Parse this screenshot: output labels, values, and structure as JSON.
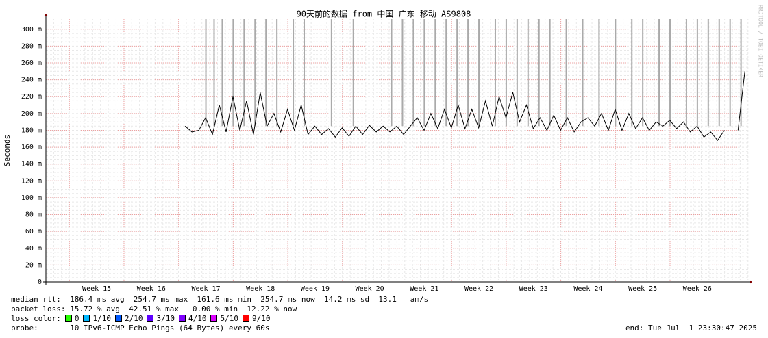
{
  "chart_data": {
    "type": "line",
    "title": "90天前的数据 from 中国 广东 移动 AS9808",
    "y_label": "Seconds",
    "side_text": "RRDTOOL / TOBI OETIKER",
    "xlim": [
      14.07,
      26.93
    ],
    "xticks": [
      {
        "value": 15,
        "label": "Week 15"
      },
      {
        "value": 16,
        "label": "Week 16"
      },
      {
        "value": 17,
        "label": "Week 17"
      },
      {
        "value": 18,
        "label": "Week 18"
      },
      {
        "value": 19,
        "label": "Week 19"
      },
      {
        "value": 20,
        "label": "Week 20"
      },
      {
        "value": 21,
        "label": "Week 21"
      },
      {
        "value": 22,
        "label": "Week 22"
      },
      {
        "value": 23,
        "label": "Week 23"
      },
      {
        "value": 24,
        "label": "Week 24"
      },
      {
        "value": 25,
        "label": "Week 25"
      },
      {
        "value": 26,
        "label": "Week 26"
      }
    ],
    "ylim": [
      0,
      312
    ],
    "yticks": [
      0,
      {
        "value": 20,
        "label": "20 m"
      },
      {
        "value": 40,
        "label": "40 m"
      },
      {
        "value": 60,
        "label": "60 m"
      },
      {
        "value": 80,
        "label": "80 m"
      },
      {
        "value": 100,
        "label": "100 m"
      },
      {
        "value": 120,
        "label": "120 m"
      },
      {
        "value": 140,
        "label": "140 m"
      },
      {
        "value": 160,
        "label": "160 m"
      },
      {
        "value": 180,
        "label": "180 m"
      },
      {
        "value": 200,
        "label": "200 m"
      },
      {
        "value": 220,
        "label": "220 m"
      },
      {
        "value": 240,
        "label": "240 m"
      },
      {
        "value": 260,
        "label": "260 m"
      },
      {
        "value": 280,
        "label": "280 m"
      },
      {
        "value": 300,
        "label": "300 m"
      }
    ],
    "grid": true,
    "x": [
      16.62,
      16.745,
      16.87,
      16.995,
      17.12,
      17.245,
      17.37,
      17.495,
      17.62,
      17.745,
      17.87,
      17.995,
      18.12,
      18.245,
      18.37,
      18.495,
      18.62,
      18.745,
      18.87,
      18.995,
      19.12,
      19.245,
      19.37,
      19.495,
      19.62,
      19.745,
      19.87,
      19.995,
      20.12,
      20.245,
      20.37,
      20.495,
      20.62,
      20.745,
      20.87,
      20.995,
      21.12,
      21.245,
      21.37,
      21.495,
      21.62,
      21.745,
      21.87,
      21.995,
      22.12,
      22.245,
      22.37,
      22.495,
      22.62,
      22.745,
      22.87,
      22.995,
      23.12,
      23.245,
      23.37,
      23.495,
      23.62,
      23.745,
      23.87,
      23.995,
      24.12,
      24.245,
      24.37,
      24.495,
      24.62,
      24.745,
      24.87,
      24.995,
      25.12,
      25.245,
      25.37,
      25.495,
      25.62,
      25.745,
      25.87,
      25.995,
      26.12,
      26.245,
      26.37,
      26.495,
      26.62,
      26.745,
      26.87
    ],
    "series": [
      {
        "color": "#000000",
        "values": [
          185,
          178,
          180,
          195,
          175,
          210,
          178,
          220,
          180,
          215,
          175,
          225,
          185,
          200,
          178,
          205,
          180,
          210,
          175,
          185,
          175,
          182,
          172,
          183,
          173,
          185,
          175,
          186,
          178,
          185,
          178,
          185,
          175,
          185,
          195,
          180,
          200,
          182,
          205,
          183,
          210,
          182,
          205,
          183,
          215,
          185,
          220,
          195,
          225,
          190,
          210,
          182,
          195,
          180,
          198,
          180,
          195,
          178,
          190,
          195,
          185,
          200,
          180,
          205,
          180,
          200,
          182,
          195,
          180,
          190,
          185,
          192,
          182,
          190,
          178,
          185,
          172,
          178,
          168,
          180,
          null,
          180,
          250
        ]
      }
    ],
    "loss_x": [
      17.0,
      17.15,
      17.3,
      17.5,
      17.7,
      17.9,
      18.1,
      18.3,
      18.6,
      18.8,
      19.3,
      19.7,
      20.4,
      20.6,
      20.8,
      21.0,
      21.2,
      21.4,
      21.6,
      21.8,
      22.0,
      22.3,
      22.5,
      22.7,
      22.9,
      23.1,
      23.3,
      23.6,
      23.9,
      24.2,
      24.5,
      24.8,
      25.0,
      25.3,
      25.5,
      25.8,
      26.0,
      26.2,
      26.4,
      26.6,
      26.8
    ],
    "loss_color_colors": [
      "#26ff00",
      "#00b8ff",
      "#0059ff",
      "#5e00ff",
      "#7e00ff",
      "#dd00ff",
      "#ff0000"
    ]
  },
  "footer": {
    "median_rtt": "median rtt:  186.4 ms avg  254.7 ms max  161.6 ms min  254.7 ms now  14.2 ms sd  13.1   am/s",
    "packet_loss": "packet loss: 15.72 % avg  42.51 % max   0.00 % min  12.22 % now",
    "loss_color_label": "loss color:",
    "loss_colors": [
      "0",
      "1/10",
      "2/10",
      "3/10",
      "4/10",
      "5/10",
      "9/10"
    ],
    "probe": "probe:       10 IPv6-ICMP Echo Pings (64 Bytes) every 60s",
    "end": "end: Tue Jul  1 23:30:47 2025"
  }
}
